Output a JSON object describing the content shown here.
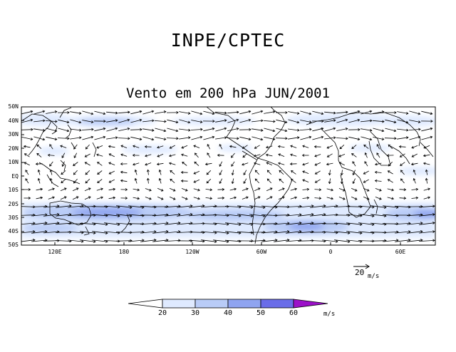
{
  "header": {
    "title": "INPE/CPTEC",
    "subtitle": "Vento em 200 hPa JUN/2001"
  },
  "map": {
    "lat_labels": [
      "50N",
      "40N",
      "30N",
      "20N",
      "10N",
      "EQ",
      "10S",
      "20S",
      "30S",
      "40S",
      "50S"
    ],
    "lon_labels": [
      "120E",
      "180",
      "120W",
      "60W",
      "0",
      "60E"
    ],
    "colors": {
      "frame": "#000000",
      "coast": "#000000",
      "vector": "#000000"
    }
  },
  "reference_vector": {
    "value": "20",
    "unit": "m/s"
  },
  "colorbar": {
    "ticks": [
      "20",
      "30",
      "40",
      "50",
      "60"
    ],
    "unit": "m/s",
    "colors": [
      "#ffffff",
      "#dfeaff",
      "#b9ccf7",
      "#8fa4f0",
      "#6a6de8",
      "#9b10c8"
    ]
  }
}
